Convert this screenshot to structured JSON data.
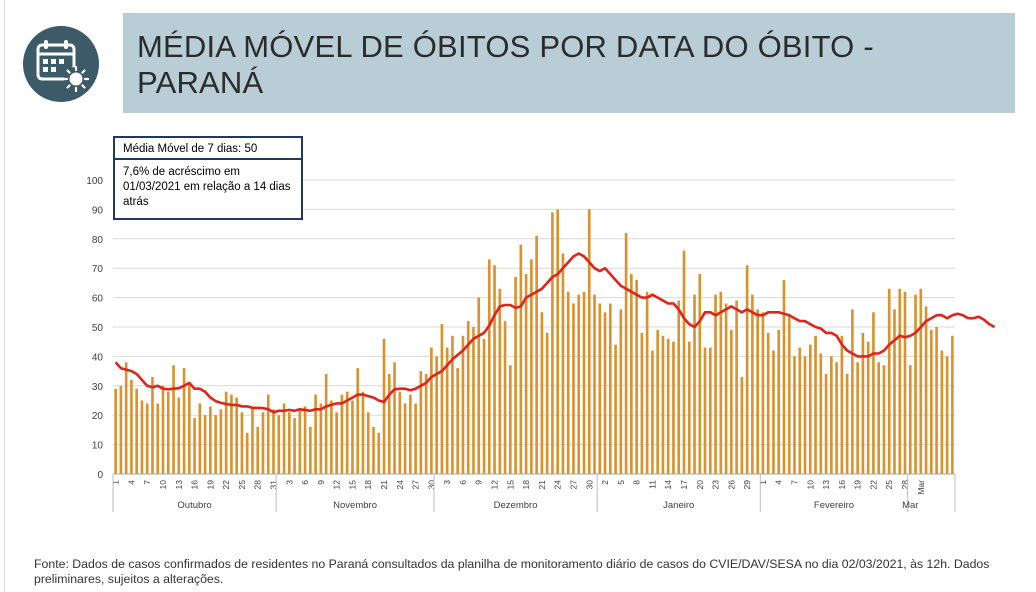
{
  "header": {
    "title": "MÉDIA MÓVEL DE ÓBITOS POR DATA DO ÓBITO - PARANÁ",
    "icon": "calendar-virus-icon",
    "icon_bg": "#3d5a68",
    "title_bg": "#b9cdd7"
  },
  "annotations": {
    "moving_avg": "Média Móvel de 7 dias: 50",
    "change": "7,6% de acréscimo em 01/03/2021  em relação a 14 dias atrás"
  },
  "footer": {
    "source": "Fonte: Dados de casos confirmados de residentes no Paraná consultados da planilha de monitoramento diário de casos do CVIE/DAV/SESA no dia 02/03/2021, às 12h. Dados preliminares, sujeitos a alterações."
  },
  "chart_data": {
    "type": "bar",
    "title": "",
    "xlabel": "",
    "ylabel": "",
    "ylim": [
      0,
      100
    ],
    "yticks": [
      0,
      10,
      20,
      30,
      40,
      50,
      60,
      70,
      80,
      90,
      100
    ],
    "grid": "horizontal",
    "bar_color": "#d9922e",
    "line_color": "#e0231b",
    "x_tick_labels": [
      "1",
      "4",
      "7",
      "10",
      "13",
      "16",
      "19",
      "22",
      "25",
      "28",
      "31",
      "3",
      "6",
      "9",
      "12",
      "15",
      "18",
      "21",
      "24",
      "27",
      "30",
      "3",
      "6",
      "9",
      "12",
      "15",
      "18",
      "21",
      "24",
      "27",
      "30",
      "2",
      "5",
      "8",
      "11",
      "14",
      "17",
      "20",
      "23",
      "26",
      "29",
      "1",
      "4",
      "7",
      "10",
      "13",
      "16",
      "19",
      "22",
      "25",
      "28",
      "Mar"
    ],
    "months": [
      {
        "label": "Outubro",
        "start": 0,
        "end": 31
      },
      {
        "label": "Novembro",
        "start": 31,
        "end": 61
      },
      {
        "label": "Dezembro",
        "start": 61,
        "end": 92
      },
      {
        "label": "Janeiro",
        "start": 92,
        "end": 123
      },
      {
        "label": "Fevereiro",
        "start": 123,
        "end": 151
      },
      {
        "label": "Mar",
        "start": 151,
        "end": 152
      }
    ],
    "series": [
      {
        "type": "bar",
        "values": [
          29,
          30,
          38,
          32,
          29,
          25,
          24,
          33,
          24,
          30,
          28,
          37,
          26,
          36,
          31,
          19,
          24,
          20,
          23,
          20,
          22,
          28,
          27,
          26,
          21,
          14,
          23,
          16,
          21,
          27,
          22,
          20,
          24,
          21,
          19,
          22,
          23,
          16,
          27,
          24,
          34,
          25,
          21,
          27,
          28,
          25,
          36,
          28,
          21,
          16,
          14,
          46,
          34,
          38,
          28,
          24,
          27,
          24,
          35,
          34,
          43,
          40,
          51,
          43,
          47,
          36,
          47,
          52,
          50,
          60,
          46,
          73,
          71,
          63,
          52,
          37,
          67,
          78,
          68,
          73,
          81,
          55,
          48,
          89,
          90,
          75,
          62,
          58,
          61,
          62,
          90,
          61,
          58,
          55,
          58,
          44,
          56,
          82,
          68,
          66,
          48,
          62,
          42,
          49,
          47,
          46,
          45,
          59,
          76,
          45,
          61,
          68,
          43,
          43,
          61,
          62,
          58,
          49,
          59,
          33,
          71,
          61,
          56,
          55,
          48,
          42,
          49,
          66,
          54,
          40,
          43,
          40,
          44,
          47,
          41,
          34,
          40,
          38,
          47,
          34,
          56,
          38,
          48,
          45,
          55,
          38,
          37,
          63,
          56,
          63,
          62,
          37,
          61,
          63,
          57,
          49,
          50,
          42,
          40,
          47
        ]
      },
      {
        "type": "line",
        "values": [
          38,
          36,
          35.5,
          35,
          34,
          32,
          30,
          29.5,
          30,
          29,
          28.8,
          29,
          29.2,
          30,
          31,
          29,
          29,
          28,
          26,
          24.8,
          24.2,
          23.8,
          23.5,
          23.5,
          23,
          23,
          22.5,
          22.5,
          22.4,
          22,
          21,
          21.5,
          21.5,
          21.8,
          21.5,
          22,
          21.8,
          21.5,
          22,
          22,
          23,
          23.5,
          24,
          24,
          25,
          26,
          27,
          27,
          26.5,
          26,
          25,
          24.5,
          27,
          28.8,
          29,
          29,
          28.5,
          29,
          30,
          31,
          33,
          34,
          35,
          37,
          39,
          40.5,
          42,
          44,
          46,
          47,
          48,
          50.5,
          54,
          57,
          57.5,
          57.5,
          56.5,
          57,
          60,
          61,
          62,
          63,
          65,
          67,
          68,
          70,
          72,
          74,
          75,
          74,
          72,
          70,
          69,
          70,
          68,
          66,
          64,
          63,
          62,
          61,
          60,
          60,
          61,
          60,
          59,
          58,
          58,
          56,
          53,
          51,
          50,
          52,
          55,
          55,
          54,
          55,
          56,
          57,
          56,
          55,
          56,
          55,
          54,
          54,
          55,
          55,
          55,
          54.5,
          54,
          53,
          52,
          52,
          51,
          50,
          49.5,
          48,
          48,
          47,
          44,
          42,
          41,
          40,
          40,
          40,
          41,
          41,
          42,
          44,
          45.5,
          47,
          46.5,
          47,
          48,
          50,
          52,
          53,
          54,
          54,
          53,
          54,
          54.5,
          54,
          53,
          53,
          53.5,
          52.5,
          51,
          50
        ]
      }
    ]
  }
}
